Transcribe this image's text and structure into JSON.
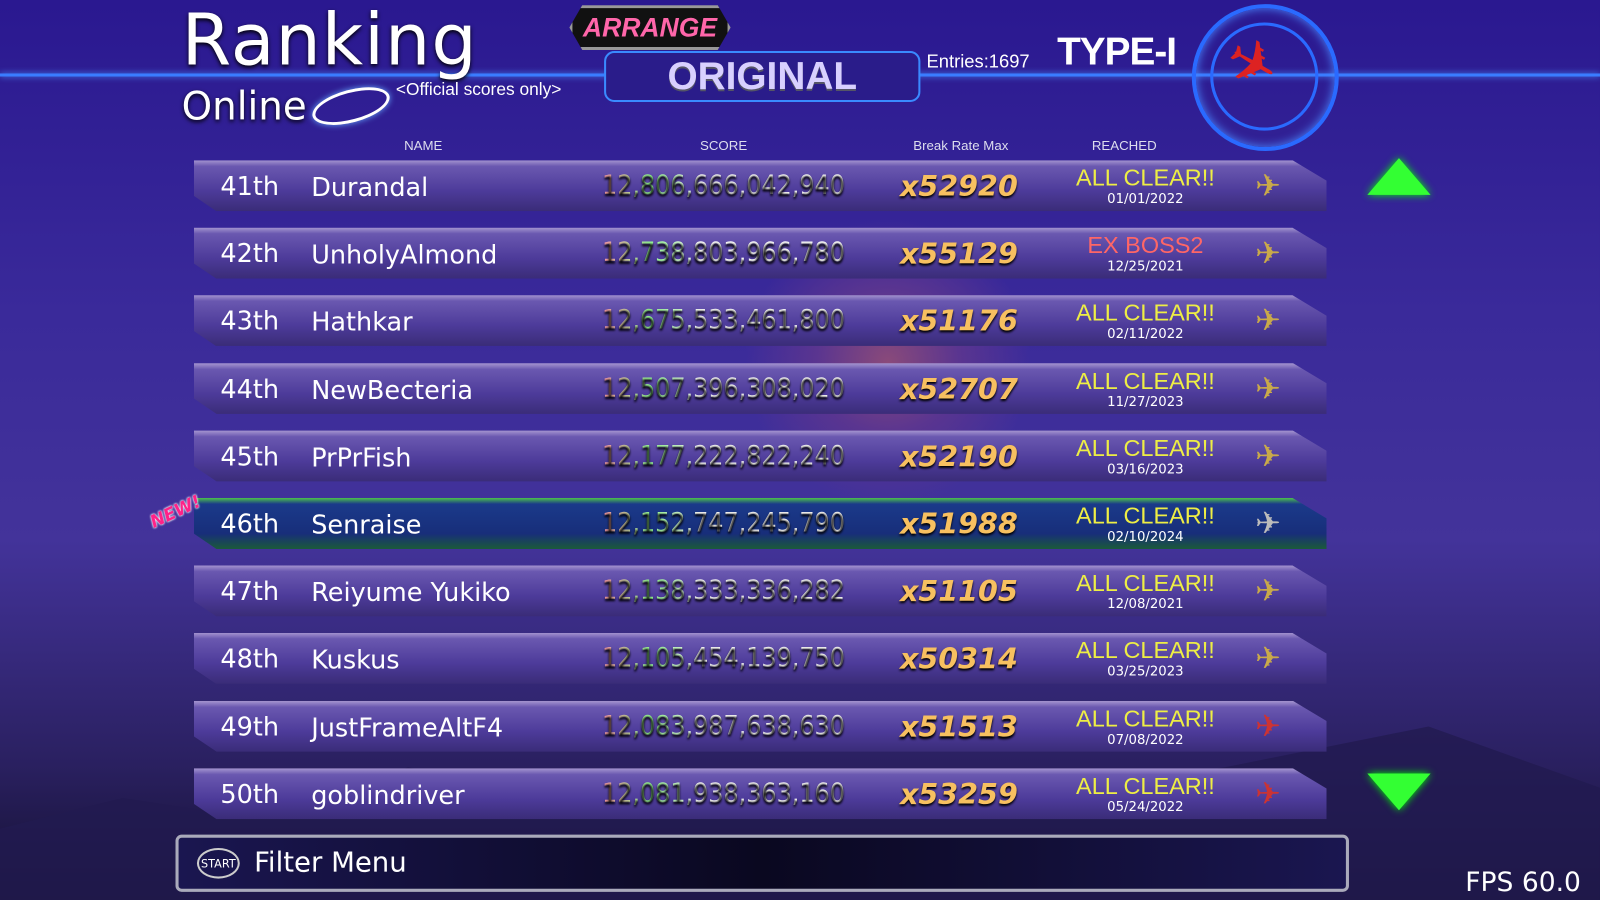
{
  "header": {
    "title": "Ranking",
    "subtitle": "Online",
    "official": "<Official scores only>",
    "mode_top": "ARRANGE",
    "mode_selected": "ORIGINAL",
    "entries": "Entries:1697",
    "ship_type": "TYPE-I"
  },
  "columns": {
    "name": "NAME",
    "score": "SCORE",
    "rate": "Break Rate Max",
    "reached": "REACHED"
  },
  "rows": [
    {
      "rank": "41th",
      "name": "Durandal",
      "score": "12,806,666,042,940",
      "rate": "x52920",
      "reached": "ALL CLEAR!!",
      "date": "01/01/2022",
      "ship": "gold"
    },
    {
      "rank": "42th",
      "name": "UnholyAlmond",
      "score": "12,738,803,966,780",
      "rate": "x55129",
      "reached": "EX BOSS2",
      "date": "12/25/2021",
      "ship": "gold"
    },
    {
      "rank": "43th",
      "name": "Hathkar",
      "score": "12,675,533,461,800",
      "rate": "x51176",
      "reached": "ALL CLEAR!!",
      "date": "02/11/2022",
      "ship": "gold"
    },
    {
      "rank": "44th",
      "name": "NewBecteria",
      "score": "12,507,396,308,020",
      "rate": "x52707",
      "reached": "ALL CLEAR!!",
      "date": "11/27/2023",
      "ship": "gold"
    },
    {
      "rank": "45th",
      "name": "PrPrFish",
      "score": "12,177,222,822,240",
      "rate": "x52190",
      "reached": "ALL CLEAR!!",
      "date": "03/16/2023",
      "ship": "gold"
    },
    {
      "rank": "46th",
      "name": "Senraise",
      "score": "12,152,747,245,790",
      "rate": "x51988",
      "reached": "ALL CLEAR!!",
      "date": "02/10/2024",
      "ship": "grey"
    },
    {
      "rank": "47th",
      "name": "Reiyume Yukiko",
      "score": "12,138,333,336,282",
      "rate": "x51105",
      "reached": "ALL CLEAR!!",
      "date": "12/08/2021",
      "ship": "gold"
    },
    {
      "rank": "48th",
      "name": "Kuskus",
      "score": "12,105,454,139,750",
      "rate": "x50314",
      "reached": "ALL CLEAR!!",
      "date": "03/25/2023",
      "ship": "gold"
    },
    {
      "rank": "49th",
      "name": "JustFrameAltF4",
      "score": "12,083,987,638,630",
      "rate": "x51513",
      "reached": "ALL CLEAR!!",
      "date": "07/08/2022",
      "ship": "red"
    },
    {
      "rank": "50th",
      "name": "goblindriver",
      "score": "12,081,938,363,160",
      "rate": "x53259",
      "reached": "ALL CLEAR!!",
      "date": "05/24/2022",
      "ship": "red"
    }
  ],
  "new_badge": "NEW!",
  "footer": {
    "start_label": "START",
    "filter_label": "Filter Menu",
    "fps": "FPS 60.0"
  },
  "colors": {
    "accent": "#3a7cff",
    "highlight": "#3fdd3f",
    "reached": "#eeee44",
    "ex_boss": "#ff6666",
    "rate": "#f7c060"
  }
}
